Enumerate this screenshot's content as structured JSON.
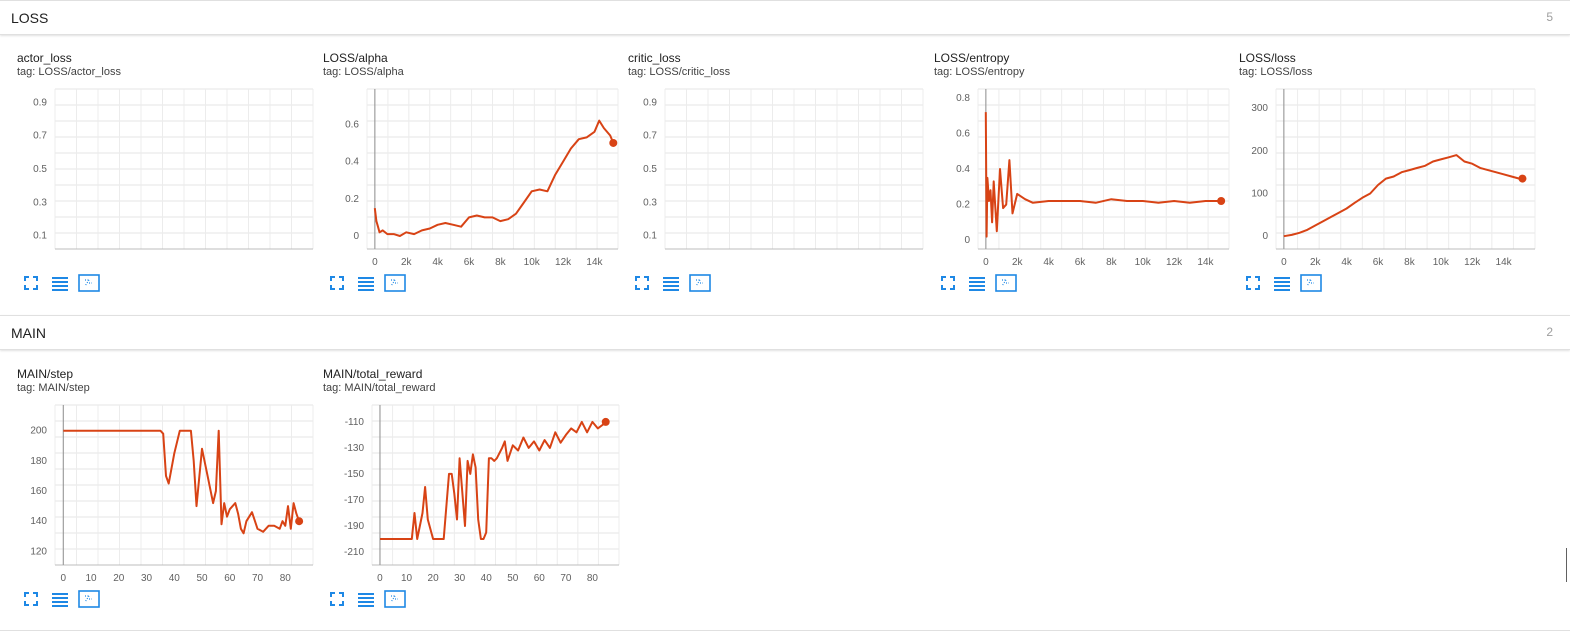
{
  "sections": [
    {
      "title": "LOSS",
      "count": "5"
    },
    {
      "title": "MAIN",
      "count": "2"
    }
  ],
  "cards": [
    {
      "title": "actor_loss",
      "tag": "tag: LOSS/actor_loss",
      "chart": {
        "type": "line",
        "empty": true,
        "ylim": [
          0.02,
          0.98
        ],
        "yticks": [
          "0.9",
          "0.7",
          "0.5",
          "0.3",
          "0.1"
        ],
        "xticks": []
      }
    },
    {
      "title": "LOSS/alpha",
      "tag": "tag: LOSS/alpha",
      "chart": {
        "type": "line",
        "xlim": [
          -500,
          15500
        ],
        "ylim": [
          -0.07,
          0.79
        ],
        "xticks": [
          "0",
          "2k",
          "4k",
          "6k",
          "8k",
          "10k",
          "12k",
          "14k"
        ],
        "yticks": [
          "0",
          "0.2",
          "0.4",
          "0.6"
        ]
      }
    },
    {
      "title": "critic_loss",
      "tag": "tag: LOSS/critic_loss",
      "chart": {
        "type": "line",
        "empty": true,
        "ylim": [
          0.02,
          0.98
        ],
        "yticks": [
          "0.9",
          "0.7",
          "0.5",
          "0.3",
          "0.1"
        ],
        "xticks": []
      }
    },
    {
      "title": "LOSS/entropy",
      "tag": "tag: LOSS/entropy",
      "chart": {
        "type": "line",
        "xlim": [
          -500,
          15500
        ],
        "ylim": [
          -0.05,
          0.85
        ],
        "xticks": [
          "0",
          "2k",
          "4k",
          "6k",
          "8k",
          "10k",
          "12k",
          "14k"
        ],
        "yticks": [
          "0",
          "0.2",
          "0.4",
          "0.6",
          "0.8"
        ]
      }
    },
    {
      "title": "LOSS/loss",
      "tag": "tag: LOSS/loss",
      "chart": {
        "type": "line",
        "xlim": [
          -500,
          16000
        ],
        "ylim": [
          -30,
          345
        ],
        "xticks": [
          "0",
          "2k",
          "4k",
          "6k",
          "8k",
          "10k",
          "12k",
          "14k"
        ],
        "yticks": [
          "0",
          "100",
          "200",
          "300"
        ]
      }
    },
    {
      "title": "MAIN/step",
      "tag": "tag: MAIN/step",
      "chart": {
        "type": "line",
        "xlim": [
          -3,
          90
        ],
        "ylim": [
          111,
          217
        ],
        "xticks": [
          "0",
          "10",
          "20",
          "30",
          "40",
          "50",
          "60",
          "70",
          "80"
        ],
        "yticks": [
          "120",
          "140",
          "160",
          "180",
          "200"
        ]
      }
    },
    {
      "title": "MAIN/total_reward",
      "tag": "tag: MAIN/total_reward",
      "chart": {
        "type": "line",
        "xlim": [
          -3,
          90
        ],
        "ylim": [
          -220,
          -97
        ],
        "xticks": [
          "0",
          "10",
          "20",
          "30",
          "40",
          "50",
          "60",
          "70",
          "80"
        ],
        "yticks": [
          "-110",
          "-130",
          "-150",
          "-170",
          "-190",
          "-210"
        ]
      }
    }
  ],
  "chart_data": [
    {
      "name": "actor_loss",
      "type": "line",
      "x": [],
      "y": []
    },
    {
      "name": "LOSS/alpha",
      "type": "line",
      "x": [
        0,
        100,
        200,
        300,
        500,
        800,
        1200,
        1600,
        2000,
        2500,
        3000,
        3500,
        4000,
        4500,
        5000,
        5500,
        6000,
        6500,
        7000,
        7500,
        8000,
        8500,
        9000,
        9500,
        10000,
        10500,
        11000,
        11500,
        12000,
        12500,
        13000,
        13500,
        14000,
        14300,
        14600,
        15000,
        15200
      ],
      "y": [
        0.15,
        0.08,
        0.05,
        0.02,
        0.03,
        0.01,
        0.01,
        0.0,
        0.02,
        0.01,
        0.03,
        0.04,
        0.06,
        0.07,
        0.06,
        0.05,
        0.1,
        0.11,
        0.1,
        0.1,
        0.08,
        0.09,
        0.12,
        0.18,
        0.24,
        0.25,
        0.24,
        0.33,
        0.4,
        0.47,
        0.52,
        0.53,
        0.56,
        0.62,
        0.58,
        0.54,
        0.5
      ]
    },
    {
      "name": "critic_loss",
      "type": "line",
      "x": [],
      "y": []
    },
    {
      "name": "LOSS/entropy",
      "type": "line",
      "x": [
        0,
        50,
        100,
        200,
        300,
        400,
        500,
        700,
        900,
        1100,
        1300,
        1500,
        1700,
        2000,
        2500,
        3000,
        4000,
        5000,
        6000,
        7000,
        8000,
        9000,
        10000,
        11000,
        12000,
        13000,
        14000,
        15000
      ],
      "y": [
        0.72,
        0.02,
        0.35,
        0.22,
        0.28,
        0.1,
        0.33,
        0.05,
        0.4,
        0.18,
        0.2,
        0.45,
        0.15,
        0.26,
        0.23,
        0.21,
        0.22,
        0.22,
        0.22,
        0.21,
        0.23,
        0.22,
        0.22,
        0.21,
        0.22,
        0.21,
        0.22,
        0.22
      ]
    },
    {
      "name": "LOSS/loss",
      "type": "line",
      "x": [
        0,
        500,
        1000,
        1500,
        2000,
        2500,
        3000,
        3500,
        4000,
        4500,
        5000,
        5500,
        6000,
        6500,
        7000,
        7500,
        8000,
        8500,
        9000,
        9500,
        10000,
        10500,
        11000,
        11500,
        12000,
        12500,
        13000,
        13500,
        14000,
        14500,
        15000,
        15200
      ],
      "y": [
        0,
        3,
        8,
        15,
        25,
        35,
        45,
        55,
        65,
        78,
        90,
        100,
        120,
        135,
        140,
        150,
        155,
        160,
        165,
        175,
        180,
        185,
        190,
        175,
        170,
        160,
        155,
        150,
        145,
        140,
        135,
        135
      ]
    },
    {
      "name": "MAIN/step",
      "type": "line",
      "x": [
        0,
        35,
        36,
        37,
        38,
        40,
        42,
        44,
        46,
        47,
        48,
        50,
        52,
        54,
        55,
        56,
        57,
        58,
        59,
        60,
        62,
        63,
        64,
        65,
        66,
        68,
        70,
        72,
        74,
        76,
        78,
        79,
        80,
        81,
        82,
        83,
        84,
        85
      ],
      "y": [
        200,
        200,
        198,
        170,
        165,
        185,
        200,
        200,
        200,
        180,
        150,
        188,
        170,
        152,
        160,
        200,
        138,
        152,
        143,
        148,
        152,
        145,
        135,
        132,
        140,
        146,
        135,
        133,
        137,
        137,
        135,
        140,
        137,
        150,
        135,
        152,
        145,
        140
      ]
    },
    {
      "name": "MAIN/total_reward",
      "type": "line",
      "x": [
        0,
        10,
        12,
        13,
        14,
        16,
        17,
        18,
        20,
        22,
        24,
        26,
        27,
        28,
        29,
        30,
        32,
        33,
        34,
        35,
        36,
        37,
        38,
        39,
        40,
        41,
        42,
        43,
        44,
        46,
        47,
        48,
        50,
        52,
        54,
        56,
        58,
        60,
        62,
        64,
        66,
        68,
        70,
        72,
        74,
        76,
        78,
        80,
        82,
        84,
        85
      ],
      "y": [
        -200,
        -200,
        -200,
        -180,
        -200,
        -180,
        -160,
        -185,
        -200,
        -200,
        -200,
        -150,
        -150,
        -165,
        -185,
        -138,
        -190,
        -140,
        -150,
        -135,
        -145,
        -185,
        -200,
        -200,
        -195,
        -138,
        -138,
        -140,
        -138,
        -130,
        -125,
        -140,
        -128,
        -132,
        -122,
        -130,
        -125,
        -132,
        -124,
        -130,
        -118,
        -126,
        -120,
        -115,
        -118,
        -110,
        -118,
        -110,
        -115,
        -112,
        -110
      ]
    }
  ]
}
